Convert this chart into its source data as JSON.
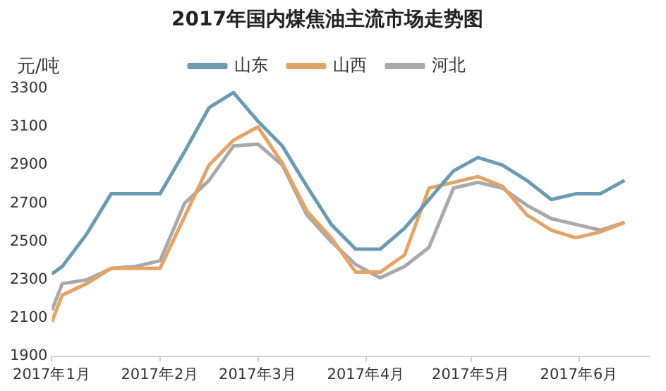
{
  "chart_data": {
    "type": "line",
    "title": "2017年国内煤焦油主流市场走势图",
    "ylabel": "元/吨",
    "x": [
      "2017-01-01",
      "2017-01-04",
      "2017-01-11",
      "2017-01-18",
      "2017-01-25",
      "2017-02-01",
      "2017-02-08",
      "2017-02-15",
      "2017-02-22",
      "2017-03-01",
      "2017-03-08",
      "2017-03-15",
      "2017-03-22",
      "2017-03-29",
      "2017-04-05",
      "2017-04-12",
      "2017-04-19",
      "2017-04-26",
      "2017-05-03",
      "2017-05-10",
      "2017-05-17",
      "2017-05-24",
      "2017-05-31",
      "2017-06-07",
      "2017-06-14"
    ],
    "series": [
      {
        "name": "山东",
        "color": "#6b9bb2",
        "values": [
          2330,
          2370,
          2540,
          2750,
          2750,
          2750,
          2970,
          3200,
          3280,
          3130,
          3000,
          2790,
          2590,
          2460,
          2460,
          2570,
          2720,
          2870,
          2940,
          2900,
          2820,
          2720,
          2750,
          2750,
          2820
        ]
      },
      {
        "name": "山西",
        "color": "#e3a467",
        "values": [
          2080,
          2220,
          2280,
          2360,
          2360,
          2360,
          2630,
          2900,
          3030,
          3100,
          2910,
          2660,
          2520,
          2340,
          2340,
          2430,
          2780,
          2810,
          2840,
          2790,
          2640,
          2560,
          2520,
          2550,
          2600
        ]
      },
      {
        "name": "河北",
        "color": "#a9a9a9",
        "values": [
          2140,
          2280,
          2300,
          2360,
          2370,
          2400,
          2700,
          2820,
          3000,
          3010,
          2900,
          2640,
          2500,
          2380,
          2310,
          2370,
          2470,
          2780,
          2810,
          2780,
          2690,
          2620,
          2590,
          2560,
          2600
        ]
      }
    ],
    "xlim": [
      "2017-01-01",
      "2017-06-21"
    ],
    "xticks": [
      {
        "value": "2017-01-01",
        "label": "2017年1月"
      },
      {
        "value": "2017-02-01",
        "label": "2017年2月"
      },
      {
        "value": "2017-03-01",
        "label": "2017年3月"
      },
      {
        "value": "2017-04-01",
        "label": "2017年4月"
      },
      {
        "value": "2017-05-01",
        "label": "2017年5月"
      },
      {
        "value": "2017-06-01",
        "label": "2017年6月"
      }
    ],
    "ylim": [
      1900,
      3300
    ],
    "yticks": [
      1900,
      2100,
      2300,
      2500,
      2700,
      2900,
      3100,
      3300
    ],
    "grid": false,
    "legend": "top",
    "marker": "none",
    "line_style": "solid"
  }
}
